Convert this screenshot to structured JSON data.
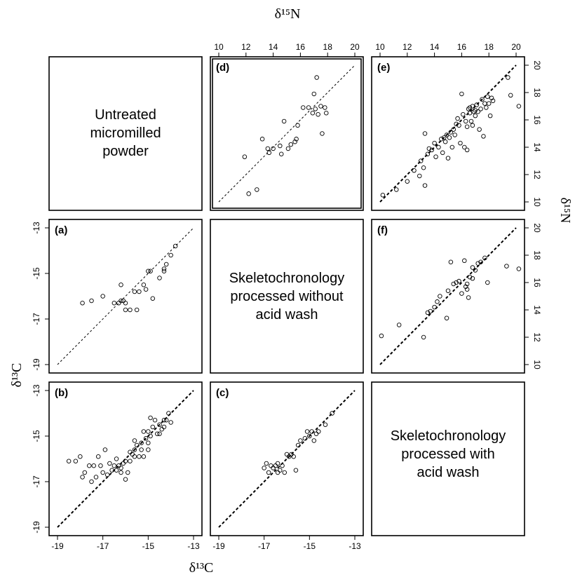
{
  "figure": {
    "top_axis_title": "δ¹⁵N",
    "bottom_axis_title": "δ¹³C",
    "left_axis_title": "δ¹³C",
    "right_axis_title": "δ¹⁵N"
  },
  "diagonal_labels": {
    "untreated": [
      "Untreated",
      "micromilled",
      "powder"
    ],
    "no_acid": [
      "Skeletochronology",
      "processed without",
      "acid wash"
    ],
    "acid": [
      "Skeletochronology",
      "processed with",
      "acid wash"
    ]
  },
  "chart_data": [
    {
      "type": "scatter",
      "panel": "(a)",
      "variable": "δ13C",
      "xlim": [
        -19,
        -13
      ],
      "ylim": [
        -19,
        -13
      ],
      "xticks": [
        -19,
        -17,
        -15,
        -13
      ],
      "yticks": [
        -19,
        -17,
        -15,
        -13
      ],
      "reference_line": "1:1",
      "points": [
        [
          -17.9,
          -16.3
        ],
        [
          -17.5,
          -16.2
        ],
        [
          -17.0,
          -16.0
        ],
        [
          -16.5,
          -16.3
        ],
        [
          -16.3,
          -16.3
        ],
        [
          -16.2,
          -16.2
        ],
        [
          -16.1,
          -16.2
        ],
        [
          -16.0,
          -16.3
        ],
        [
          -16.2,
          -15.5
        ],
        [
          -16.0,
          -16.6
        ],
        [
          -15.8,
          -16.6
        ],
        [
          -15.6,
          -15.8
        ],
        [
          -15.5,
          -16.6
        ],
        [
          -15.4,
          -15.8
        ],
        [
          -15.2,
          -15.5
        ],
        [
          -15.1,
          -15.7
        ],
        [
          -15.0,
          -14.9
        ],
        [
          -14.9,
          -14.9
        ],
        [
          -14.8,
          -16.1
        ],
        [
          -14.5,
          -15.2
        ],
        [
          -14.3,
          -14.9
        ],
        [
          -14.2,
          -14.6
        ],
        [
          -14.3,
          -14.8
        ],
        [
          -14.0,
          -14.2
        ],
        [
          -13.8,
          -13.8
        ]
      ]
    },
    {
      "type": "scatter",
      "panel": "(b)",
      "variable": "δ13C",
      "xlim": [
        -19,
        -13
      ],
      "ylim": [
        -19,
        -13
      ],
      "xticks": [
        -19,
        -17,
        -15,
        -13
      ],
      "yticks": [
        -19,
        -17,
        -15,
        -13
      ],
      "reference_line": "1:1",
      "points": [
        [
          -18.5,
          -16.1
        ],
        [
          -18.2,
          -16.1
        ],
        [
          -18.0,
          -15.9
        ],
        [
          -17.9,
          -16.8
        ],
        [
          -17.8,
          -16.6
        ],
        [
          -17.6,
          -16.3
        ],
        [
          -17.5,
          -17.0
        ],
        [
          -17.4,
          -16.3
        ],
        [
          -17.3,
          -16.8
        ],
        [
          -17.2,
          -15.9
        ],
        [
          -17.1,
          -16.3
        ],
        [
          -17.0,
          -16.6
        ],
        [
          -16.9,
          -15.6
        ],
        [
          -16.8,
          -16.7
        ],
        [
          -16.7,
          -16.2
        ],
        [
          -16.6,
          -16.5
        ],
        [
          -16.5,
          -16.3
        ],
        [
          -16.4,
          -16.5
        ],
        [
          -16.3,
          -16.3
        ],
        [
          -16.2,
          -16.6
        ],
        [
          -16.1,
          -16.2
        ],
        [
          -16.0,
          -16.1
        ],
        [
          -16.0,
          -16.9
        ],
        [
          -15.9,
          -16.6
        ],
        [
          -15.8,
          -16.1
        ],
        [
          -15.7,
          -15.8
        ],
        [
          -15.6,
          -15.9
        ],
        [
          -15.6,
          -15.6
        ],
        [
          -15.5,
          -15.4
        ],
        [
          -15.4,
          -15.9
        ],
        [
          -15.3,
          -15.3
        ],
        [
          -15.3,
          -15.6
        ],
        [
          -15.2,
          -14.8
        ],
        [
          -15.1,
          -15.1
        ],
        [
          -15.0,
          -14.8
        ],
        [
          -15.0,
          -15.6
        ],
        [
          -14.9,
          -15.0
        ],
        [
          -14.8,
          -14.6
        ],
        [
          -14.7,
          -14.3
        ],
        [
          -14.6,
          -14.9
        ],
        [
          -14.5,
          -14.5
        ],
        [
          -14.4,
          -14.7
        ],
        [
          -14.3,
          -14.3
        ],
        [
          -14.2,
          -14.3
        ],
        [
          -14.1,
          -14.0
        ],
        [
          -14.9,
          -14.2
        ],
        [
          -15.2,
          -15.9
        ],
        [
          -15.6,
          -15.2
        ],
        [
          -16.2,
          -16.4
        ],
        [
          -15.0,
          -15.3
        ],
        [
          -14.5,
          -14.9
        ],
        [
          -14.3,
          -14.6
        ],
        [
          -14.0,
          -14.4
        ],
        [
          -16.4,
          -16.0
        ],
        [
          -15.8,
          -15.7
        ]
      ]
    },
    {
      "type": "scatter",
      "panel": "(c)",
      "variable": "δ13C",
      "xlim": [
        -19,
        -13
      ],
      "ylim": [
        -19,
        -13
      ],
      "xticks": [
        -19,
        -17,
        -15,
        -13
      ],
      "yticks": [
        -19,
        -17,
        -15,
        -13
      ],
      "reference_line": "1:1",
      "points": [
        [
          -17.0,
          -16.4
        ],
        [
          -16.9,
          -16.2
        ],
        [
          -16.8,
          -16.6
        ],
        [
          -16.7,
          -16.3
        ],
        [
          -16.6,
          -16.4
        ],
        [
          -16.5,
          -16.3
        ],
        [
          -16.4,
          -16.6
        ],
        [
          -16.4,
          -16.2
        ],
        [
          -16.3,
          -16.5
        ],
        [
          -16.2,
          -16.3
        ],
        [
          -16.1,
          -16.6
        ],
        [
          -16.0,
          -15.8
        ],
        [
          -15.9,
          -15.9
        ],
        [
          -15.8,
          -15.8
        ],
        [
          -15.7,
          -15.9
        ],
        [
          -15.6,
          -16.5
        ],
        [
          -15.5,
          -15.4
        ],
        [
          -15.4,
          -15.2
        ],
        [
          -15.2,
          -15.1
        ],
        [
          -15.1,
          -14.8
        ],
        [
          -15.0,
          -15.0
        ],
        [
          -14.9,
          -14.8
        ],
        [
          -14.8,
          -15.2
        ],
        [
          -14.7,
          -14.9
        ],
        [
          -14.6,
          -14.8
        ],
        [
          -14.3,
          -14.5
        ],
        [
          -14.0,
          -14.0
        ]
      ]
    },
    {
      "type": "scatter",
      "panel": "(d)",
      "variable": "δ15N",
      "xlim": [
        10,
        20
      ],
      "ylim": [
        10,
        20
      ],
      "xticks": [
        10,
        12,
        14,
        16,
        18,
        20
      ],
      "yticks": [
        10,
        12,
        14,
        16,
        18,
        20
      ],
      "reference_line": "1:1",
      "points": [
        [
          11.9,
          13.3
        ],
        [
          12.2,
          10.6
        ],
        [
          12.8,
          10.9
        ],
        [
          13.2,
          14.6
        ],
        [
          13.6,
          13.9
        ],
        [
          13.7,
          13.6
        ],
        [
          14.0,
          13.9
        ],
        [
          14.5,
          14.1
        ],
        [
          14.6,
          13.5
        ],
        [
          14.8,
          15.9
        ],
        [
          15.1,
          13.9
        ],
        [
          15.3,
          14.2
        ],
        [
          15.6,
          14.4
        ],
        [
          15.7,
          14.6
        ],
        [
          15.8,
          15.6
        ],
        [
          16.2,
          16.9
        ],
        [
          16.6,
          16.9
        ],
        [
          16.9,
          16.5
        ],
        [
          17.0,
          17.9
        ],
        [
          17.1,
          16.8
        ],
        [
          17.2,
          19.1
        ],
        [
          17.3,
          16.4
        ],
        [
          17.5,
          17.0
        ],
        [
          17.6,
          15.0
        ],
        [
          17.8,
          16.9
        ],
        [
          17.9,
          16.5
        ]
      ]
    },
    {
      "type": "scatter",
      "panel": "(e)",
      "variable": "δ15N",
      "xlim": [
        10,
        20
      ],
      "ylim": [
        10,
        20
      ],
      "xticks": [
        10,
        12,
        14,
        16,
        18,
        20
      ],
      "yticks": [
        10,
        12,
        14,
        16,
        18,
        20
      ],
      "reference_line": "1:1",
      "points": [
        [
          10.2,
          10.5
        ],
        [
          11.2,
          10.9
        ],
        [
          12.0,
          11.5
        ],
        [
          12.5,
          12.3
        ],
        [
          12.9,
          11.9
        ],
        [
          13.0,
          13.0
        ],
        [
          13.2,
          12.5
        ],
        [
          13.3,
          15.0
        ],
        [
          13.3,
          11.2
        ],
        [
          13.5,
          13.5
        ],
        [
          13.6,
          13.9
        ],
        [
          13.8,
          13.8
        ],
        [
          14.0,
          14.3
        ],
        [
          14.1,
          13.3
        ],
        [
          14.3,
          14.0
        ],
        [
          14.5,
          14.6
        ],
        [
          14.6,
          13.6
        ],
        [
          14.8,
          14.4
        ],
        [
          14.9,
          14.9
        ],
        [
          15.0,
          13.2
        ],
        [
          15.1,
          14.7
        ],
        [
          15.2,
          15.1
        ],
        [
          15.3,
          14.0
        ],
        [
          15.4,
          15.3
        ],
        [
          15.5,
          14.9
        ],
        [
          15.6,
          15.7
        ],
        [
          15.7,
          16.1
        ],
        [
          15.8,
          15.6
        ],
        [
          15.9,
          14.3
        ],
        [
          16.0,
          17.9
        ],
        [
          16.1,
          16.4
        ],
        [
          16.2,
          14.0
        ],
        [
          16.3,
          15.9
        ],
        [
          16.4,
          15.5
        ],
        [
          16.5,
          16.8
        ],
        [
          16.6,
          16.5
        ],
        [
          16.7,
          15.9
        ],
        [
          16.8,
          17.0
        ],
        [
          16.9,
          16.6
        ],
        [
          17.0,
          16.3
        ],
        [
          17.1,
          17.1
        ],
        [
          17.2,
          16.6
        ],
        [
          17.3,
          15.3
        ],
        [
          17.4,
          16.8
        ],
        [
          17.5,
          17.5
        ],
        [
          17.6,
          14.8
        ],
        [
          17.7,
          17.2
        ],
        [
          17.8,
          16.9
        ],
        [
          17.9,
          17.7
        ],
        [
          18.0,
          17.2
        ],
        [
          18.1,
          16.3
        ],
        [
          18.2,
          17.6
        ],
        [
          18.3,
          17.4
        ],
        [
          19.4,
          19.1
        ],
        [
          19.6,
          17.8
        ],
        [
          20.2,
          17.0
        ],
        [
          16.6,
          16.9
        ],
        [
          17.0,
          16.7
        ],
        [
          16.8,
          15.6
        ],
        [
          16.4,
          13.8
        ],
        [
          14.7,
          14.7
        ]
      ]
    },
    {
      "type": "scatter",
      "panel": "(f)",
      "variable": "δ15N",
      "xlim": [
        10,
        20
      ],
      "ylim": [
        10,
        20
      ],
      "xticks": [
        10,
        12,
        14,
        16,
        18,
        20
      ],
      "yticks": [
        10,
        12,
        14,
        16,
        18,
        20
      ],
      "reference_line": "1:1",
      "points": [
        [
          10.1,
          12.1
        ],
        [
          11.4,
          12.9
        ],
        [
          13.2,
          12.0
        ],
        [
          13.5,
          13.8
        ],
        [
          13.7,
          13.9
        ],
        [
          14.0,
          14.2
        ],
        [
          14.2,
          14.6
        ],
        [
          14.4,
          15.0
        ],
        [
          14.9,
          13.4
        ],
        [
          15.0,
          15.4
        ],
        [
          15.2,
          17.5
        ],
        [
          15.4,
          15.9
        ],
        [
          15.6,
          16.0
        ],
        [
          15.8,
          16.1
        ],
        [
          16.0,
          15.2
        ],
        [
          16.2,
          17.6
        ],
        [
          16.3,
          15.7
        ],
        [
          16.4,
          15.5
        ],
        [
          16.5,
          14.9
        ],
        [
          16.6,
          16.4
        ],
        [
          16.8,
          17.1
        ],
        [
          17.0,
          16.9
        ],
        [
          17.2,
          17.4
        ],
        [
          17.4,
          17.5
        ],
        [
          17.7,
          17.8
        ],
        [
          17.9,
          16.0
        ],
        [
          19.3,
          17.2
        ],
        [
          20.2,
          17.0
        ],
        [
          16.8,
          16.3
        ],
        [
          16.4,
          15.9
        ]
      ]
    }
  ]
}
